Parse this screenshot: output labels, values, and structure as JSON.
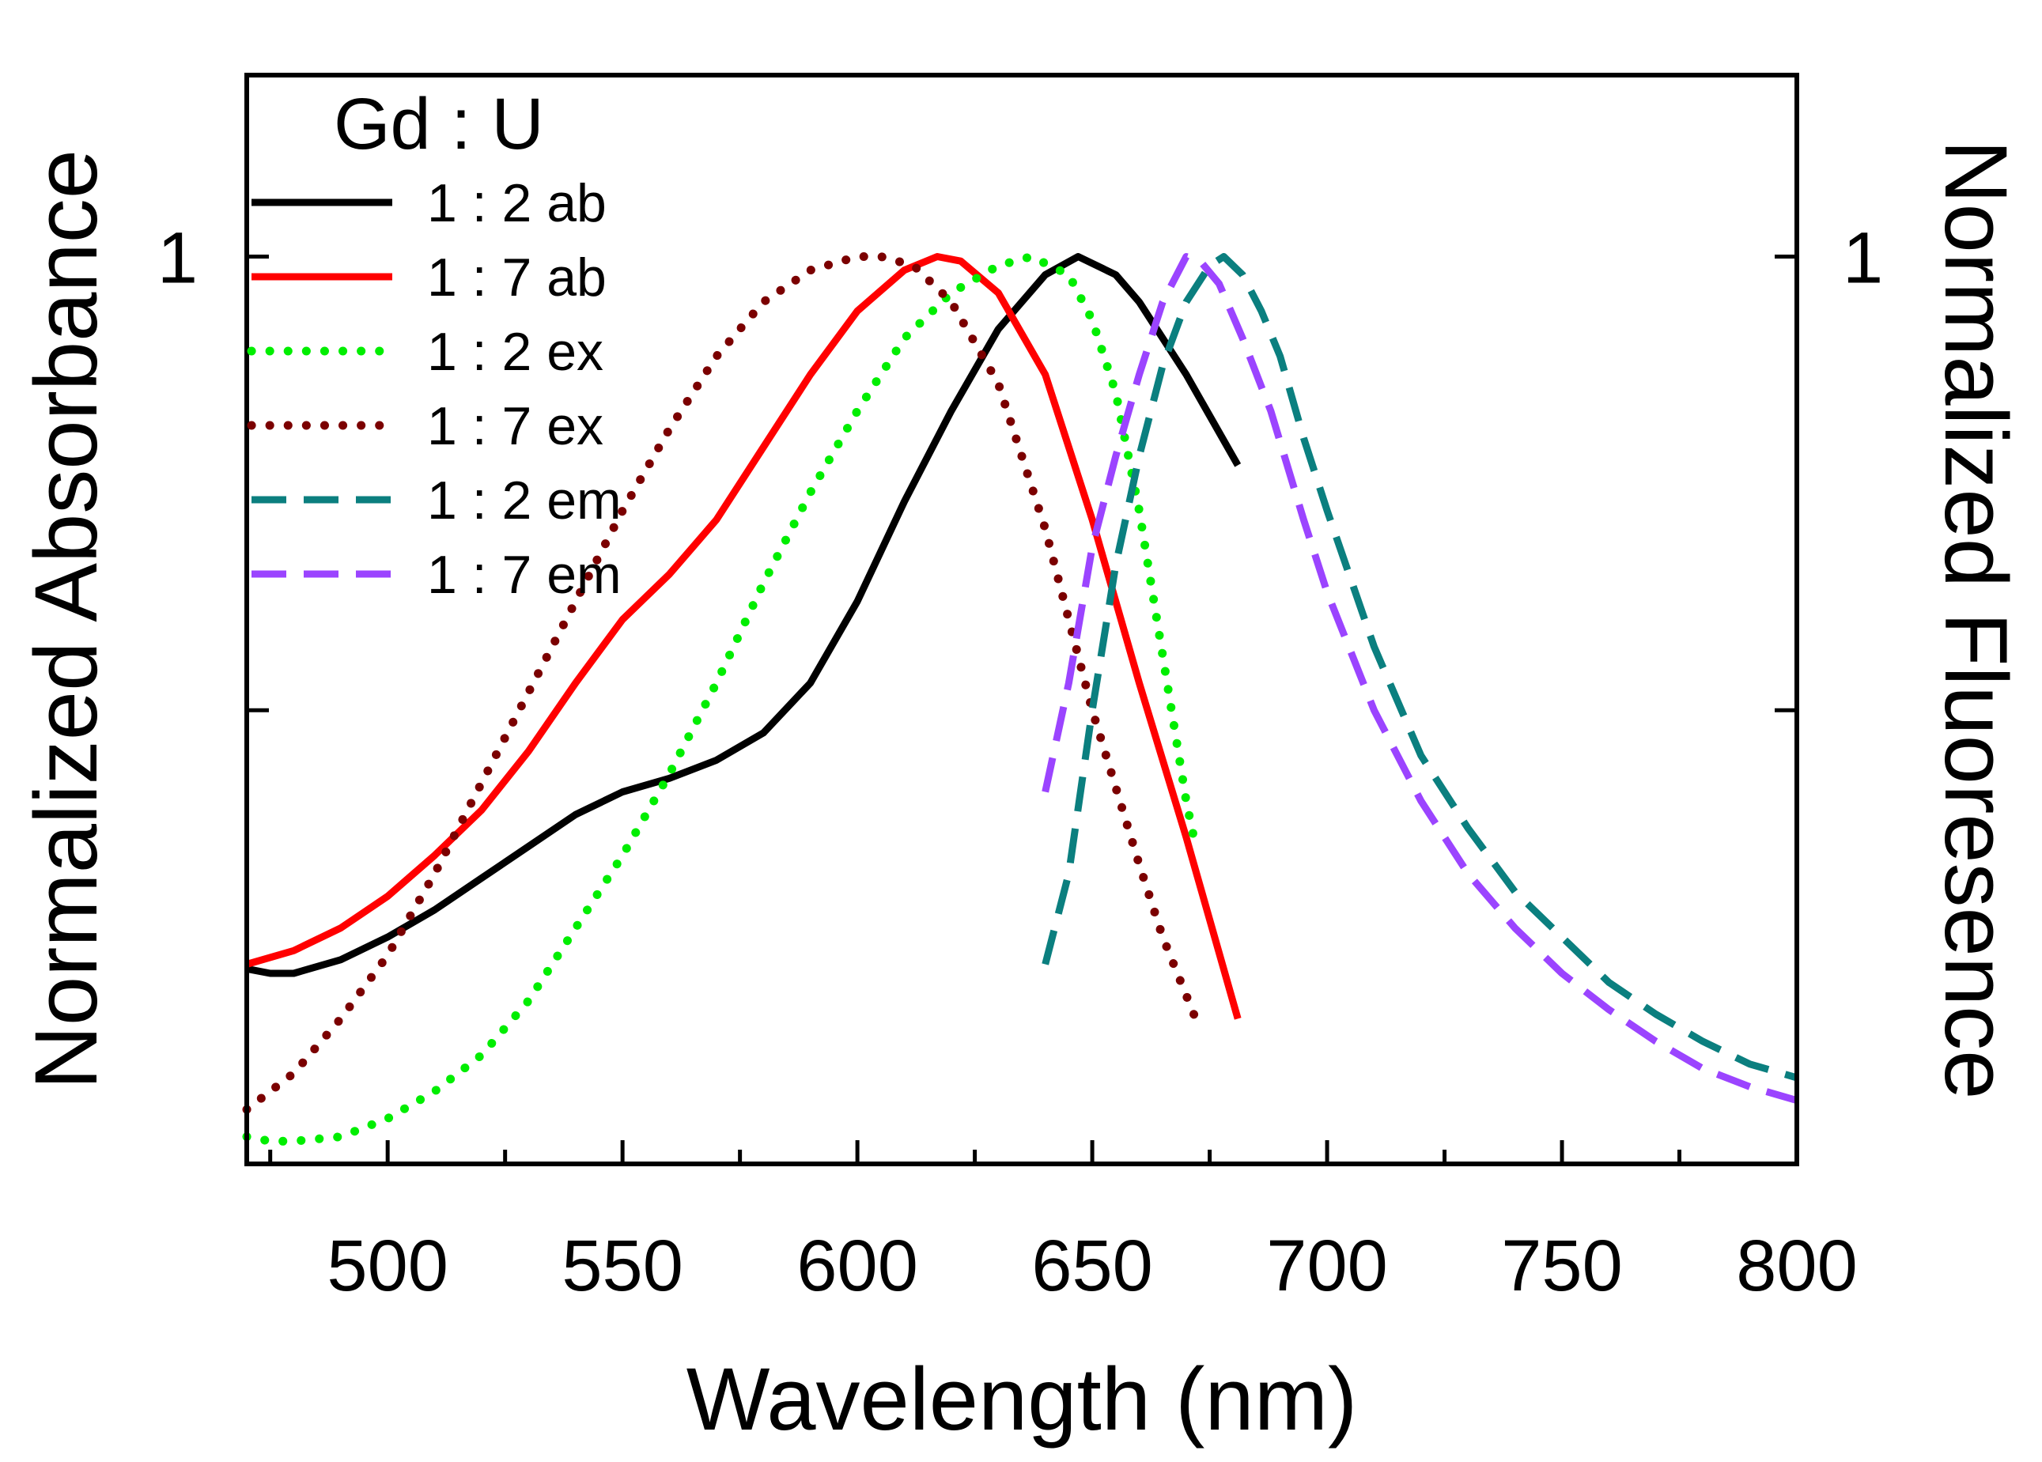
{
  "chart_data": {
    "type": "line",
    "title": "",
    "xlabel": "Wavelength (nm)",
    "ylabel_left": "Normalized Absorbance",
    "ylabel_right": "Normalized Fluoresence",
    "xlim": [
      470,
      800
    ],
    "ylim": [
      0,
      1.2
    ],
    "x_ticks": [
      500,
      550,
      600,
      650,
      700,
      750,
      800
    ],
    "y_tick_left": "1",
    "y_tick_right": "1",
    "grid": false,
    "legend": {
      "title": "Gd : U",
      "placement": "top-left",
      "entries": [
        "1 : 2 ab",
        "1 : 7 ab",
        "1 : 2 ex",
        "1 : 7 ex",
        "1 : 2 em",
        "1 : 7 em"
      ]
    },
    "series": [
      {
        "name": "1 : 2 ab",
        "color": "#000000",
        "style": "solid",
        "points": [
          [
            470,
            0.215
          ],
          [
            475,
            0.21
          ],
          [
            480,
            0.21
          ],
          [
            490,
            0.225
          ],
          [
            500,
            0.25
          ],
          [
            510,
            0.28
          ],
          [
            520,
            0.315
          ],
          [
            530,
            0.35
          ],
          [
            540,
            0.385
          ],
          [
            550,
            0.41
          ],
          [
            560,
            0.425
          ],
          [
            570,
            0.445
          ],
          [
            575,
            0.46
          ],
          [
            580,
            0.475
          ],
          [
            590,
            0.53
          ],
          [
            600,
            0.62
          ],
          [
            610,
            0.73
          ],
          [
            620,
            0.83
          ],
          [
            630,
            0.92
          ],
          [
            640,
            0.98
          ],
          [
            647,
            1.0
          ],
          [
            655,
            0.98
          ],
          [
            660,
            0.95
          ],
          [
            670,
            0.87
          ],
          [
            681,
            0.77
          ]
        ]
      },
      {
        "name": "1 : 7 ab",
        "color": "#ff0000",
        "style": "solid",
        "points": [
          [
            470,
            0.22
          ],
          [
            480,
            0.235
          ],
          [
            490,
            0.26
          ],
          [
            500,
            0.295
          ],
          [
            510,
            0.34
          ],
          [
            520,
            0.39
          ],
          [
            530,
            0.455
          ],
          [
            540,
            0.53
          ],
          [
            550,
            0.6
          ],
          [
            560,
            0.65
          ],
          [
            570,
            0.71
          ],
          [
            580,
            0.79
          ],
          [
            590,
            0.87
          ],
          [
            600,
            0.94
          ],
          [
            610,
            0.985
          ],
          [
            617,
            1.0
          ],
          [
            622,
            0.995
          ],
          [
            630,
            0.96
          ],
          [
            640,
            0.87
          ],
          [
            650,
            0.71
          ],
          [
            660,
            0.53
          ],
          [
            670,
            0.36
          ],
          [
            681,
            0.16
          ]
        ]
      },
      {
        "name": "1 : 2 ex",
        "color": "#00ee00",
        "style": "dotted",
        "points": [
          [
            470,
            0.03
          ],
          [
            475,
            0.025
          ],
          [
            480,
            0.025
          ],
          [
            490,
            0.03
          ],
          [
            500,
            0.05
          ],
          [
            510,
            0.08
          ],
          [
            520,
            0.12
          ],
          [
            530,
            0.18
          ],
          [
            540,
            0.26
          ],
          [
            550,
            0.34
          ],
          [
            560,
            0.43
          ],
          [
            570,
            0.53
          ],
          [
            580,
            0.64
          ],
          [
            590,
            0.74
          ],
          [
            600,
            0.83
          ],
          [
            610,
            0.91
          ],
          [
            620,
            0.96
          ],
          [
            630,
            0.99
          ],
          [
            637,
            1.0
          ],
          [
            645,
            0.98
          ],
          [
            650,
            0.93
          ],
          [
            655,
            0.85
          ],
          [
            660,
            0.72
          ],
          [
            665,
            0.56
          ],
          [
            670,
            0.4
          ],
          [
            672,
            0.35
          ]
        ]
      },
      {
        "name": "1 : 7 ex",
        "color": "#7b0000",
        "style": "dotted",
        "points": [
          [
            470,
            0.06
          ],
          [
            480,
            0.1
          ],
          [
            490,
            0.16
          ],
          [
            500,
            0.23
          ],
          [
            510,
            0.32
          ],
          [
            520,
            0.42
          ],
          [
            530,
            0.52
          ],
          [
            540,
            0.62
          ],
          [
            550,
            0.72
          ],
          [
            560,
            0.81
          ],
          [
            570,
            0.89
          ],
          [
            580,
            0.95
          ],
          [
            590,
            0.985
          ],
          [
            600,
            1.0
          ],
          [
            605,
            1.0
          ],
          [
            612,
            0.99
          ],
          [
            620,
            0.95
          ],
          [
            630,
            0.86
          ],
          [
            640,
            0.7
          ],
          [
            650,
            0.5
          ],
          [
            660,
            0.33
          ],
          [
            665,
            0.25
          ],
          [
            672,
            0.16
          ]
        ]
      },
      {
        "name": "1 : 2 em",
        "color": "#0b7f7f",
        "style": "dashed",
        "points": [
          [
            640,
            0.22
          ],
          [
            645,
            0.32
          ],
          [
            650,
            0.5
          ],
          [
            655,
            0.66
          ],
          [
            660,
            0.78
          ],
          [
            665,
            0.88
          ],
          [
            670,
            0.95
          ],
          [
            675,
            0.99
          ],
          [
            678,
            1.0
          ],
          [
            682,
            0.98
          ],
          [
            686,
            0.94
          ],
          [
            690,
            0.89
          ],
          [
            695,
            0.8
          ],
          [
            700,
            0.72
          ],
          [
            710,
            0.57
          ],
          [
            720,
            0.45
          ],
          [
            730,
            0.37
          ],
          [
            740,
            0.3
          ],
          [
            750,
            0.25
          ],
          [
            760,
            0.2
          ],
          [
            770,
            0.165
          ],
          [
            780,
            0.135
          ],
          [
            790,
            0.11
          ],
          [
            800,
            0.095
          ]
        ]
      },
      {
        "name": "1 : 7 em",
        "color": "#9b44ff",
        "style": "dashed",
        "points": [
          [
            640,
            0.41
          ],
          [
            645,
            0.53
          ],
          [
            650,
            0.68
          ],
          [
            655,
            0.78
          ],
          [
            660,
            0.87
          ],
          [
            665,
            0.95
          ],
          [
            670,
            1.0
          ],
          [
            673,
            0.995
          ],
          [
            677,
            0.97
          ],
          [
            682,
            0.91
          ],
          [
            688,
            0.83
          ],
          [
            695,
            0.71
          ],
          [
            700,
            0.63
          ],
          [
            710,
            0.5
          ],
          [
            720,
            0.4
          ],
          [
            730,
            0.32
          ],
          [
            740,
            0.26
          ],
          [
            750,
            0.21
          ],
          [
            760,
            0.17
          ],
          [
            770,
            0.135
          ],
          [
            780,
            0.105
          ],
          [
            790,
            0.085
          ],
          [
            800,
            0.07
          ]
        ]
      }
    ]
  }
}
